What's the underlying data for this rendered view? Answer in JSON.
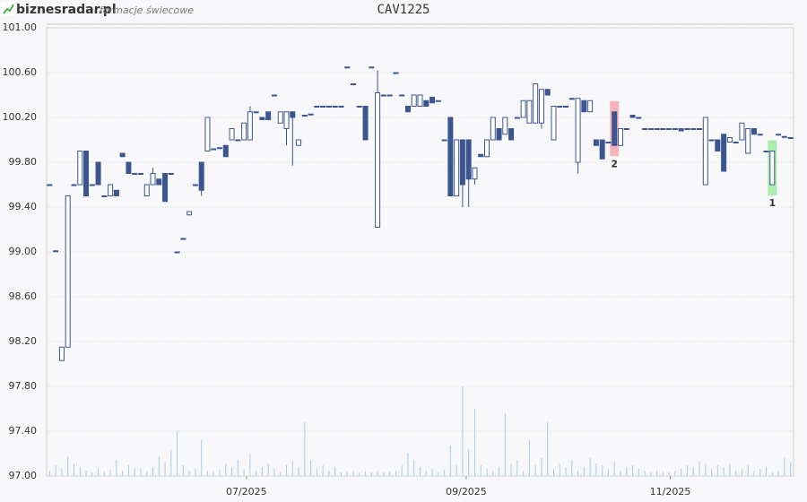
{
  "header": {
    "logo": "biznesradar.pl",
    "subtitle": "formacje świecowe"
  },
  "chart_data": {
    "type": "candlestick",
    "title": "CAV1225",
    "ylim": [
      97,
      101
    ],
    "yticks": [
      {
        "value": 97,
        "label": "97.00"
      },
      {
        "value": 97.4,
        "label": "97.40"
      },
      {
        "value": 97.8,
        "label": "97.80"
      },
      {
        "value": 98.2,
        "label": "98.20"
      },
      {
        "value": 98.6,
        "label": "98.60"
      },
      {
        "value": 99,
        "label": "99.00"
      },
      {
        "value": 99.4,
        "label": "99.40"
      },
      {
        "value": 99.8,
        "label": "99.80"
      },
      {
        "value": 100.2,
        "label": "100.20"
      },
      {
        "value": 100.6,
        "label": "100.60"
      },
      {
        "value": 101,
        "label": "101.00"
      }
    ],
    "xticks": [
      {
        "value": 32.4,
        "label": "07/2025"
      },
      {
        "value": 68.6,
        "label": "09/2025"
      },
      {
        "value": 102.2,
        "label": "11/2025"
      }
    ],
    "grid": true,
    "up_color": "#ffffff",
    "down_color": "#3b5590",
    "volume_color": "#a9cbe9",
    "ohlc": [
      [
        99.6,
        99.6,
        99.6,
        99.6
      ],
      [
        99.01,
        99.01,
        99.01,
        99.01
      ],
      [
        98.03,
        98.15,
        98.03,
        98.15
      ],
      [
        98.15,
        99.5,
        98.15,
        99.5
      ],
      [
        99.6,
        99.6,
        99.6,
        99.6
      ],
      [
        99.6,
        99.9,
        99.6,
        99.9
      ],
      [
        99.9,
        99.9,
        99.5,
        99.5
      ],
      [
        99.6,
        99.6,
        99.6,
        99.6
      ],
      [
        99.8,
        99.8,
        99.6,
        99.6
      ],
      [
        99.5,
        99.5,
        99.5,
        99.5
      ],
      [
        99.5,
        99.6,
        99.5,
        99.6
      ],
      [
        99.55,
        99.55,
        99.5,
        99.5
      ],
      [
        99.88,
        99.88,
        99.85,
        99.85
      ],
      [
        99.8,
        99.8,
        99.7,
        99.7
      ],
      [
        99.7,
        99.7,
        99.7,
        99.7
      ],
      [
        99.7,
        99.7,
        99.7,
        99.7
      ],
      [
        99.5,
        99.6,
        99.5,
        99.6
      ],
      [
        99.6,
        99.75,
        99.6,
        99.7
      ],
      [
        99.65,
        99.65,
        99.6,
        99.6
      ],
      [
        99.7,
        99.7,
        99.45,
        99.45
      ],
      [
        99.7,
        99.7,
        99.7,
        99.7
      ],
      [
        99,
        99,
        99,
        99
      ],
      [
        99.12,
        99.12,
        99.12,
        99.12
      ],
      [
        99.33,
        99.36,
        99.33,
        99.36
      ],
      [
        99.6,
        99.6,
        99.6,
        99.6
      ],
      [
        99.8,
        99.8,
        99.5,
        99.55
      ],
      [
        99.9,
        100.2,
        99.9,
        100.2
      ],
      [
        99.92,
        99.92,
        99.92,
        99.92
      ],
      [
        99.93,
        99.93,
        99.93,
        99.93
      ],
      [
        99.95,
        99.95,
        99.85,
        99.85
      ],
      [
        100,
        100.1,
        100,
        100.1
      ],
      [
        100,
        100,
        100,
        100
      ],
      [
        100,
        100.15,
        100,
        100.15
      ],
      [
        100,
        100.3,
        100,
        100.25
      ],
      [
        100.25,
        100.25,
        100.25,
        100.25
      ],
      [
        100.2,
        100.2,
        100.18,
        100.18
      ],
      [
        100.25,
        100.25,
        100.18,
        100.18
      ],
      [
        100.4,
        100.4,
        100.4,
        100.4
      ],
      [
        100.15,
        100.25,
        100.15,
        100.25
      ],
      [
        100.1,
        100.25,
        99.95,
        100.25
      ],
      [
        100.25,
        100.25,
        99.77,
        100.2
      ],
      [
        99.95,
        100,
        99.95,
        100
      ],
      [
        100.22,
        100.22,
        100.22,
        100.22
      ],
      [
        100.23,
        100.23,
        100.23,
        100.23
      ],
      [
        100.3,
        100.3,
        100.3,
        100.3
      ],
      [
        100.3,
        100.3,
        100.3,
        100.3
      ],
      [
        100.3,
        100.3,
        100.3,
        100.3
      ],
      [
        100.3,
        100.3,
        100.3,
        100.3
      ],
      [
        100.3,
        100.3,
        100.3,
        100.3
      ],
      [
        100.65,
        100.65,
        100.65,
        100.65
      ],
      [
        100.5,
        100.5,
        100.5,
        100.5
      ],
      [
        100.3,
        100.3,
        100.3,
        100.3
      ],
      [
        100.3,
        100.3,
        100,
        100
      ],
      [
        100.65,
        100.65,
        100.65,
        100.65
      ],
      [
        99.22,
        100.62,
        99.22,
        100.42
      ],
      [
        100.4,
        100.4,
        100.4,
        100.4
      ],
      [
        100.4,
        100.4,
        100.4,
        100.4
      ],
      [
        100.6,
        100.6,
        100.6,
        100.6
      ],
      [
        100.4,
        100.4,
        100.4,
        100.4
      ],
      [
        100.3,
        100.3,
        100.25,
        100.25
      ],
      [
        100.3,
        100.4,
        100.3,
        100.4
      ],
      [
        100.3,
        100.4,
        100.3,
        100.4
      ],
      [
        100.35,
        100.35,
        100.3,
        100.3
      ],
      [
        100.38,
        100.38,
        100.33,
        100.33
      ],
      [
        100.35,
        100.35,
        100.35,
        100.35
      ],
      [
        100,
        100,
        100,
        100
      ],
      [
        100.2,
        100.2,
        99.5,
        99.5
      ],
      [
        99.5,
        100,
        99.5,
        100
      ],
      [
        100,
        100,
        99.4,
        99.6
      ],
      [
        100,
        100,
        99.4,
        99.65
      ],
      [
        99.65,
        99.75,
        99.6,
        99.75
      ],
      [
        99.87,
        99.87,
        99.85,
        99.85
      ],
      [
        99.85,
        100,
        99.85,
        100
      ],
      [
        100,
        100.2,
        100,
        100.2
      ],
      [
        100.1,
        100.1,
        100,
        100
      ],
      [
        100.05,
        100.2,
        100.05,
        100.2
      ],
      [
        100.1,
        100.1,
        100,
        100
      ],
      [
        100.2,
        100.2,
        100.2,
        100.2
      ],
      [
        100.2,
        100.35,
        100.2,
        100.35
      ],
      [
        100.15,
        100.35,
        100.15,
        100.35
      ],
      [
        100.15,
        100.5,
        100.15,
        100.5
      ],
      [
        100.15,
        100.45,
        100.1,
        100.45
      ],
      [
        100.45,
        100.45,
        100.4,
        100.4
      ],
      [
        100,
        100.3,
        100,
        100.3
      ],
      [
        100.3,
        100.3,
        100.3,
        100.3
      ],
      [
        100.3,
        100.3,
        100.3,
        100.3
      ],
      [
        100.37,
        100.37,
        100.37,
        100.37
      ],
      [
        99.8,
        100.37,
        99.7,
        100.37
      ],
      [
        100.35,
        100.35,
        100.25,
        100.25
      ],
      [
        100.25,
        100.35,
        100.25,
        100.35
      ],
      [
        100,
        100,
        99.95,
        99.95
      ],
      [
        100,
        100,
        99.83,
        99.83
      ],
      [
        99.98,
        99.98,
        99.98,
        99.98
      ],
      [
        100.25,
        100.25,
        99.95,
        99.95
      ],
      [
        99.95,
        100.1,
        99.95,
        100.1
      ],
      [
        100.1,
        100.1,
        100.1,
        100.1
      ],
      [
        100.22,
        100.22,
        100.2,
        100.2
      ],
      [
        100.2,
        100.2,
        100.2,
        100.2
      ],
      [
        100.1,
        100.1,
        100.1,
        100.1
      ],
      [
        100.1,
        100.1,
        100.1,
        100.1
      ],
      [
        100.1,
        100.1,
        100.1,
        100.1
      ],
      [
        100.1,
        100.1,
        100.1,
        100.1
      ],
      [
        100.1,
        100.1,
        100.1,
        100.1
      ],
      [
        100.1,
        100.1,
        100.1,
        100.1
      ],
      [
        100.1,
        100.1,
        100.08,
        100.08
      ],
      [
        100.1,
        100.1,
        100.1,
        100.1
      ],
      [
        100.1,
        100.1,
        100.1,
        100.1
      ],
      [
        100.1,
        100.1,
        100.1,
        100.1
      ],
      [
        99.6,
        100.2,
        99.6,
        100.2
      ],
      [
        100,
        100,
        100,
        100
      ],
      [
        100,
        100,
        99.9,
        99.9
      ],
      [
        100.05,
        100.05,
        99.72,
        99.72
      ],
      [
        99.98,
        100.02,
        99.98,
        100.02
      ],
      [
        99.98,
        99.98,
        99.98,
        99.98
      ],
      [
        100,
        100.15,
        100,
        100.15
      ],
      [
        99.88,
        100.1,
        99.88,
        100.1
      ],
      [
        100.1,
        100.1,
        100.05,
        100.05
      ],
      [
        100.05,
        100.05,
        100.05,
        100.05
      ],
      [
        99.9,
        99.9,
        99.9,
        99.9
      ],
      [
        99.6,
        99.9,
        99.6,
        99.9
      ],
      [
        100.05,
        100.05,
        100.05,
        100.05
      ],
      [
        100.03,
        100.03,
        100.03,
        100.03
      ],
      [
        100.02,
        100.02,
        100.02,
        100.02
      ]
    ],
    "volume": [
      6,
      12,
      8,
      22,
      14,
      10,
      6,
      4,
      8,
      5,
      7,
      18,
      6,
      12,
      9,
      8,
      5,
      10,
      22,
      16,
      30,
      50,
      12,
      6,
      8,
      40,
      6,
      5,
      7,
      14,
      10,
      18,
      8,
      24,
      6,
      10,
      14,
      8,
      5,
      12,
      16,
      10,
      60,
      18,
      8,
      12,
      6,
      10,
      4,
      5,
      6,
      4,
      5,
      4,
      6,
      4,
      5,
      6,
      12,
      26,
      18,
      10,
      6,
      8,
      5,
      7,
      34,
      12,
      100,
      30,
      75,
      12,
      8,
      6,
      10,
      70,
      14,
      18,
      6,
      40,
      12,
      20,
      60,
      8,
      14,
      10,
      18,
      6,
      10,
      20,
      14,
      12,
      8,
      16,
      6,
      10,
      12,
      8,
      6,
      4,
      6,
      5,
      4,
      6,
      8,
      12,
      10,
      16,
      14,
      8,
      12,
      10,
      14,
      6,
      8,
      12,
      6,
      8,
      10,
      4,
      6,
      20,
      16
    ],
    "signals": [
      {
        "label": "1",
        "index": 119,
        "color": "#9be79b"
      },
      {
        "label": "2",
        "index": 93,
        "color": "#f5a3a8"
      }
    ]
  }
}
